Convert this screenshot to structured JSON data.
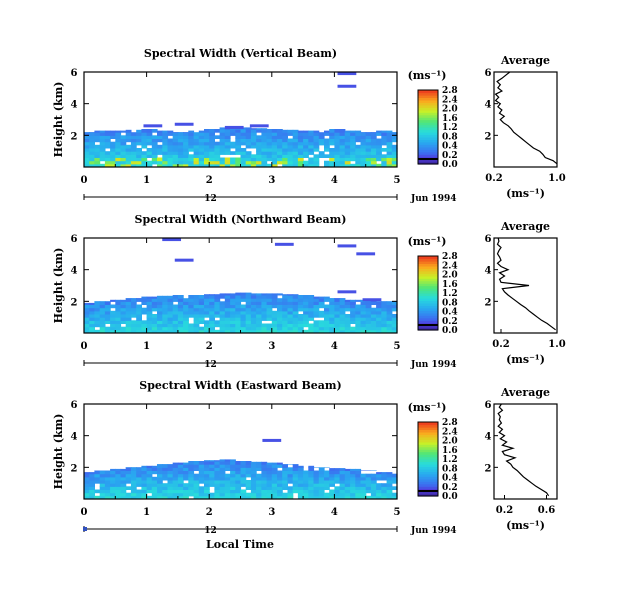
{
  "figure": {
    "x_label": "Local Time",
    "date_label": "Jun 1994",
    "day_label": "12",
    "y_label": "Height (km)",
    "unit_label": "(ms⁻¹)",
    "avg_title": "Average"
  },
  "chart_data": [
    {
      "type": "heatmap",
      "title": "Spectral Width (Vertical Beam)",
      "xlabel": "",
      "ylabel": "Height (km)",
      "x_ticks": [
        "0",
        "1",
        "2",
        "3",
        "4",
        "5"
      ],
      "y_ticks": [
        "2",
        "4",
        "6"
      ],
      "xlim": [
        0,
        5
      ],
      "ylim": [
        0,
        6
      ],
      "colorbar_ticks": [
        "0.0",
        "0.2",
        "0.4",
        "0.8",
        "1.2",
        "1.6",
        "2.0",
        "2.4",
        "2.8"
      ],
      "colorbar_range": [
        0.0,
        2.8
      ],
      "echo_top_km": [
        2.2,
        2.3,
        2.3,
        2.35,
        2.4,
        2.3,
        2.2,
        2.3,
        2.4,
        2.5,
        2.5,
        2.45,
        2.4,
        2.35,
        2.3,
        2.3,
        2.4,
        2.3,
        2.2,
        2.3,
        2.2
      ],
      "isolated_echoes": [
        [
          2.4,
          2.5
        ],
        [
          2.8,
          2.6
        ],
        [
          4.2,
          5.9
        ],
        [
          4.2,
          5.1
        ],
        [
          1.1,
          2.6
        ],
        [
          1.6,
          2.7
        ]
      ],
      "average_profile": {
        "title": "Average",
        "xlabel": "(ms⁻¹)",
        "x_ticks": [
          "0.2",
          "1.0"
        ],
        "y_ticks": [
          "2",
          "4",
          "6"
        ],
        "xlim": [
          0.2,
          1.0
        ],
        "ylim": [
          0,
          6
        ],
        "height_km": [
          0.2,
          0.4,
          0.6,
          0.8,
          1.0,
          1.2,
          1.4,
          1.6,
          1.8,
          2.0,
          2.2,
          2.4,
          2.6,
          2.8,
          3.0,
          3.2,
          3.4,
          3.6,
          3.8,
          4.0,
          4.2,
          4.4,
          4.6,
          4.8,
          5.0,
          5.2,
          5.4,
          5.6,
          5.8,
          6.0
        ],
        "width_ms": [
          1.0,
          0.95,
          0.85,
          0.82,
          0.78,
          0.7,
          0.65,
          0.6,
          0.55,
          0.5,
          0.45,
          0.42,
          0.38,
          0.32,
          0.28,
          0.33,
          0.27,
          0.3,
          0.25,
          0.28,
          0.22,
          0.26,
          0.22,
          0.3,
          0.25,
          0.28,
          0.24,
          0.3,
          0.35,
          0.4
        ]
      }
    },
    {
      "type": "heatmap",
      "title": "Spectral Width (Northward Beam)",
      "xlabel": "",
      "ylabel": "Height (km)",
      "x_ticks": [
        "0",
        "1",
        "2",
        "3",
        "4",
        "5"
      ],
      "y_ticks": [
        "2",
        "4",
        "6"
      ],
      "xlim": [
        0,
        5
      ],
      "ylim": [
        0,
        6
      ],
      "colorbar_ticks": [
        "0.0",
        "0.2",
        "0.4",
        "0.8",
        "1.2",
        "1.6",
        "2.0",
        "2.4",
        "2.8"
      ],
      "colorbar_range": [
        0.0,
        2.8
      ],
      "echo_top_km": [
        1.9,
        2.0,
        2.1,
        2.2,
        2.3,
        2.35,
        2.4,
        2.4,
        2.45,
        2.5,
        2.55,
        2.5,
        2.5,
        2.45,
        2.4,
        2.3,
        2.2,
        2.1,
        2.1,
        2.0,
        2.0
      ],
      "isolated_echoes": [
        [
          1.4,
          5.9
        ],
        [
          3.2,
          5.6
        ],
        [
          4.2,
          5.5
        ],
        [
          4.5,
          5.0
        ],
        [
          4.2,
          2.6
        ],
        [
          4.6,
          2.1
        ],
        [
          1.6,
          4.6
        ]
      ],
      "average_profile": {
        "title": "Average",
        "xlabel": "(ms⁻¹)",
        "x_ticks": [
          "0.2",
          "1.0"
        ],
        "y_ticks": [
          "2",
          "4",
          "6"
        ],
        "xlim": [
          0.1,
          1.0
        ],
        "ylim": [
          0,
          6
        ],
        "height_km": [
          0.2,
          0.4,
          0.6,
          0.8,
          1.0,
          1.2,
          1.4,
          1.6,
          1.8,
          2.0,
          2.2,
          2.4,
          2.6,
          2.8,
          3.0,
          3.2,
          3.4,
          3.6,
          3.8,
          4.0,
          4.2,
          4.4,
          4.6,
          4.8,
          5.0,
          5.2,
          5.4,
          5.6,
          5.8,
          6.0
        ],
        "width_ms": [
          0.98,
          0.92,
          0.86,
          0.78,
          0.72,
          0.66,
          0.6,
          0.55,
          0.48,
          0.42,
          0.36,
          0.3,
          0.25,
          0.22,
          0.6,
          0.2,
          0.18,
          0.25,
          0.18,
          0.3,
          0.2,
          0.15,
          0.2,
          0.18,
          0.15,
          0.17,
          0.2,
          0.15,
          0.17,
          0.16
        ]
      }
    },
    {
      "type": "heatmap",
      "title": "Spectral Width (Eastward Beam)",
      "xlabel": "Local Time",
      "ylabel": "Height (km)",
      "x_ticks": [
        "0",
        "1",
        "2",
        "3",
        "4",
        "5"
      ],
      "y_ticks": [
        "2",
        "4",
        "6"
      ],
      "xlim": [
        0,
        5
      ],
      "ylim": [
        0,
        6
      ],
      "colorbar_ticks": [
        "0.0",
        "0.2",
        "0.4",
        "0.8",
        "1.2",
        "1.6",
        "2.0",
        "2.4",
        "2.8"
      ],
      "colorbar_range": [
        0.0,
        2.8
      ],
      "echo_top_km": [
        1.7,
        1.8,
        1.9,
        2.0,
        2.1,
        2.2,
        2.3,
        2.4,
        2.45,
        2.5,
        2.4,
        2.35,
        2.3,
        2.2,
        2.1,
        2.0,
        1.95,
        1.9,
        1.8,
        1.7,
        1.6
      ],
      "isolated_echoes": [
        [
          3.0,
          3.7
        ]
      ],
      "average_profile": {
        "title": "Average",
        "xlabel": "(ms⁻¹)",
        "x_ticks": [
          "0.2",
          "0.6"
        ],
        "y_ticks": [
          "2",
          "4",
          "6"
        ],
        "xlim": [
          0.1,
          0.7
        ],
        "ylim": [
          0,
          6
        ],
        "height_km": [
          0.2,
          0.4,
          0.6,
          0.8,
          1.0,
          1.2,
          1.4,
          1.6,
          1.8,
          2.0,
          2.2,
          2.4,
          2.6,
          2.8,
          3.0,
          3.2,
          3.4,
          3.6,
          3.8,
          4.0,
          4.2,
          4.4,
          4.6,
          4.8,
          5.0,
          5.2,
          5.4,
          5.6,
          5.8,
          6.0
        ],
        "width_ms": [
          0.62,
          0.6,
          0.55,
          0.5,
          0.46,
          0.42,
          0.38,
          0.35,
          0.32,
          0.28,
          0.26,
          0.22,
          0.3,
          0.2,
          0.18,
          0.28,
          0.18,
          0.22,
          0.16,
          0.2,
          0.15,
          0.18,
          0.14,
          0.17,
          0.15,
          0.16,
          0.14,
          0.18,
          0.15,
          0.17
        ]
      }
    }
  ]
}
